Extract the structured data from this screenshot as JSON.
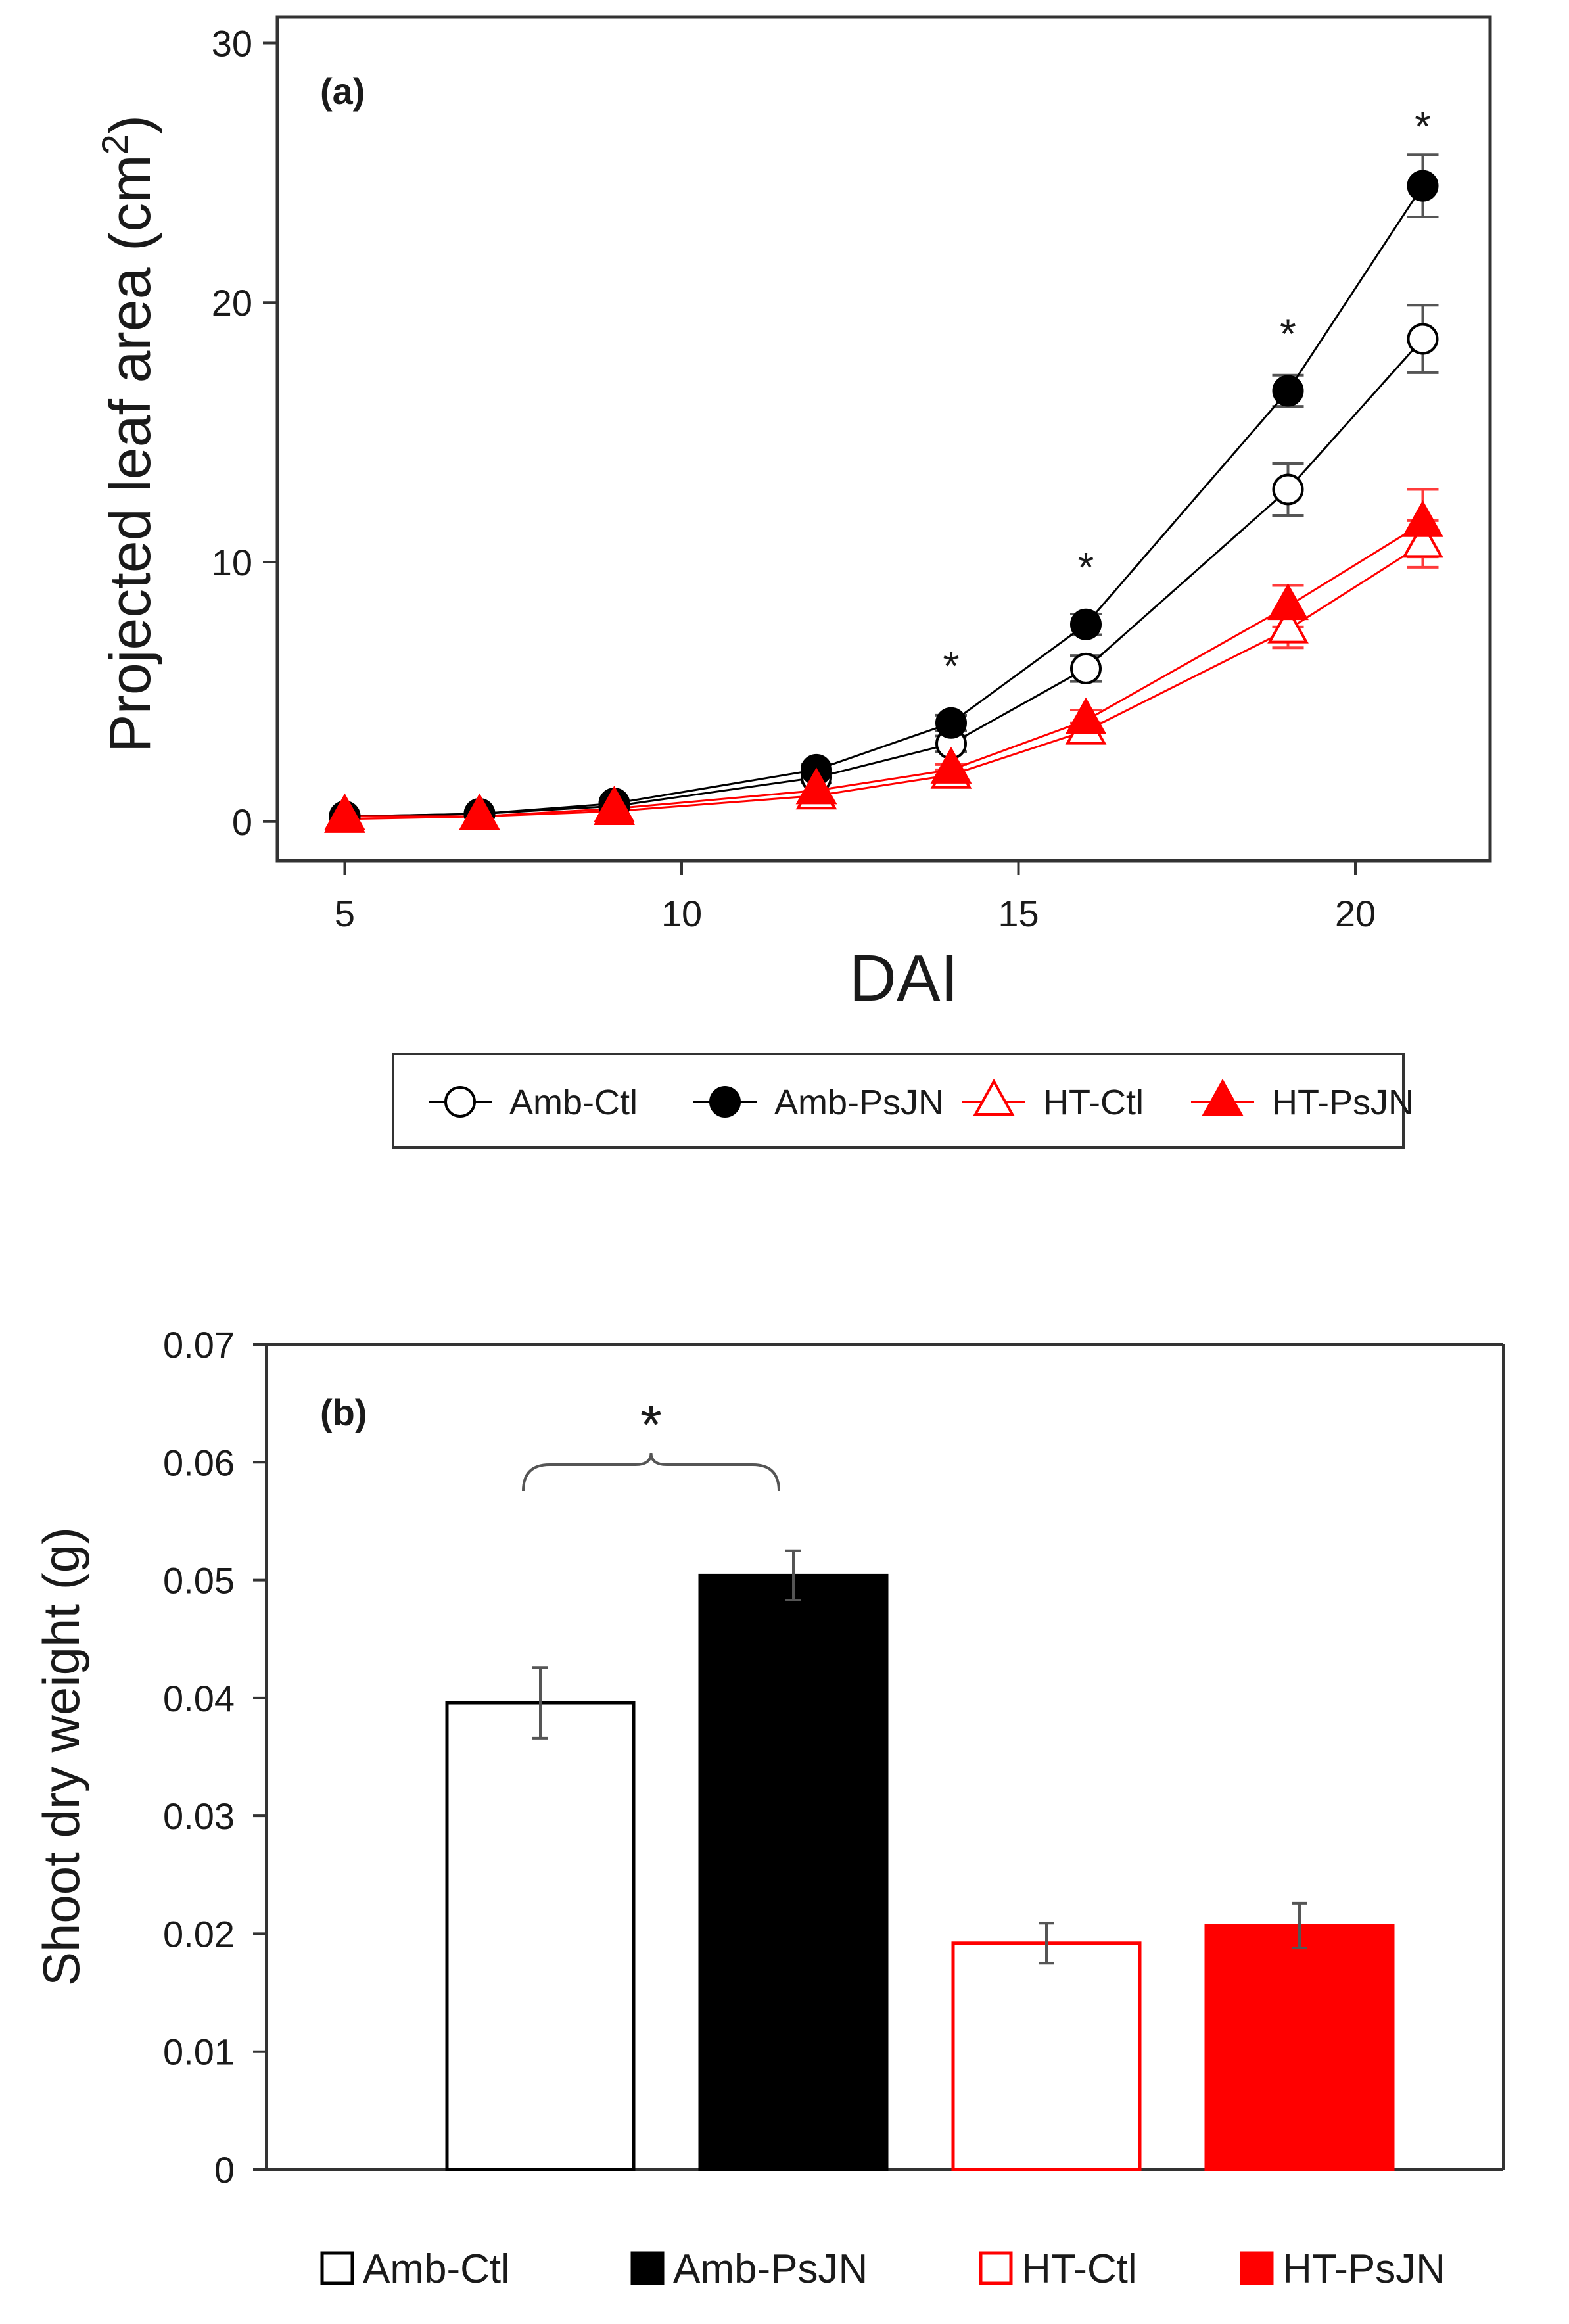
{
  "colors": {
    "ambient": "#000000",
    "heat": "#ff0000",
    "axis": "#333333",
    "errorbar_a": "#555555",
    "errorbar_b": "#555555"
  },
  "chart_data": [
    {
      "type": "line",
      "panel_label": "(a)",
      "xlabel": "DAI",
      "ylabel": "Projected leaf area (cm",
      "ylabel_superscript": "2",
      "ylabel_close": ")",
      "xlim": [
        4.0,
        22.0
      ],
      "ylim": [
        -1.5,
        31.0
      ],
      "xticks": [
        5,
        10,
        15,
        20
      ],
      "yticks": [
        0,
        10,
        20,
        30
      ],
      "x": [
        5,
        7,
        9,
        12,
        14,
        16,
        19,
        21
      ],
      "series": [
        {
          "name": "Amb-Ctl",
          "marker": "circle-open",
          "color": "#000000",
          "values": [
            0.2,
            0.3,
            0.6,
            1.7,
            3.0,
            5.9,
            12.8,
            18.6
          ],
          "errors": [
            0.05,
            0.05,
            0.1,
            0.2,
            0.3,
            0.5,
            1.0,
            1.3
          ]
        },
        {
          "name": "Amb-PsJN",
          "marker": "circle-filled",
          "color": "#000000",
          "values": [
            0.2,
            0.3,
            0.7,
            2.0,
            3.8,
            7.6,
            16.6,
            24.5
          ],
          "errors": [
            0.05,
            0.05,
            0.1,
            0.2,
            0.3,
            0.4,
            0.6,
            1.2
          ]
        },
        {
          "name": "HT-Ctl",
          "marker": "triangle-open",
          "color": "#ff0000",
          "values": [
            0.1,
            0.2,
            0.4,
            1.0,
            1.8,
            3.5,
            7.4,
            10.7
          ],
          "errors": [
            0.05,
            0.05,
            0.1,
            0.1,
            0.2,
            0.3,
            0.7,
            0.9
          ]
        },
        {
          "name": "HT-PsJN",
          "marker": "triangle-filled",
          "color": "#ff0000",
          "values": [
            0.2,
            0.2,
            0.5,
            1.2,
            2.0,
            3.9,
            8.3,
            11.5
          ],
          "errors": [
            0.05,
            0.05,
            0.1,
            0.1,
            0.2,
            0.4,
            0.8,
            1.3
          ]
        }
      ],
      "significance": [
        {
          "x": 14,
          "y": 6.2,
          "label": "*"
        },
        {
          "x": 16,
          "y": 10.0,
          "label": "*"
        },
        {
          "x": 19,
          "y": 19.0,
          "label": "*"
        },
        {
          "x": 21,
          "y": 27.0,
          "label": "*"
        }
      ],
      "legend": [
        "Amb-Ctl",
        "Amb-PsJN",
        "HT-Ctl",
        "HT-PsJN"
      ],
      "legend_position": "bottom"
    },
    {
      "type": "bar",
      "panel_label": "(b)",
      "ylabel": "Shoot dry weight (g)",
      "xlabel": "",
      "ylim": [
        0,
        0.07
      ],
      "yticks": [
        0,
        0.01,
        0.02,
        0.03,
        0.04,
        0.05,
        0.06,
        0.07
      ],
      "ytick_labels": [
        "0",
        "0.01",
        "0.02",
        "0.03",
        "0.04",
        "0.05",
        "0.06",
        "0.07"
      ],
      "categories": [
        "Amb-Ctl",
        "Amb-PsJN",
        "HT-Ctl",
        "HT-PsJN"
      ],
      "values": [
        0.0396,
        0.0504,
        0.0192,
        0.0207
      ],
      "errors": [
        0.003,
        0.0021,
        0.0017,
        0.0019
      ],
      "styles": [
        "open-black",
        "filled-black",
        "open-red",
        "filled-red"
      ],
      "significance": {
        "between": [
          "Amb-Ctl",
          "Amb-PsJN"
        ],
        "label": "*"
      },
      "legend": [
        "Amb-Ctl",
        "Amb-PsJN",
        "HT-Ctl",
        "HT-PsJN"
      ],
      "legend_position": "bottom"
    }
  ]
}
